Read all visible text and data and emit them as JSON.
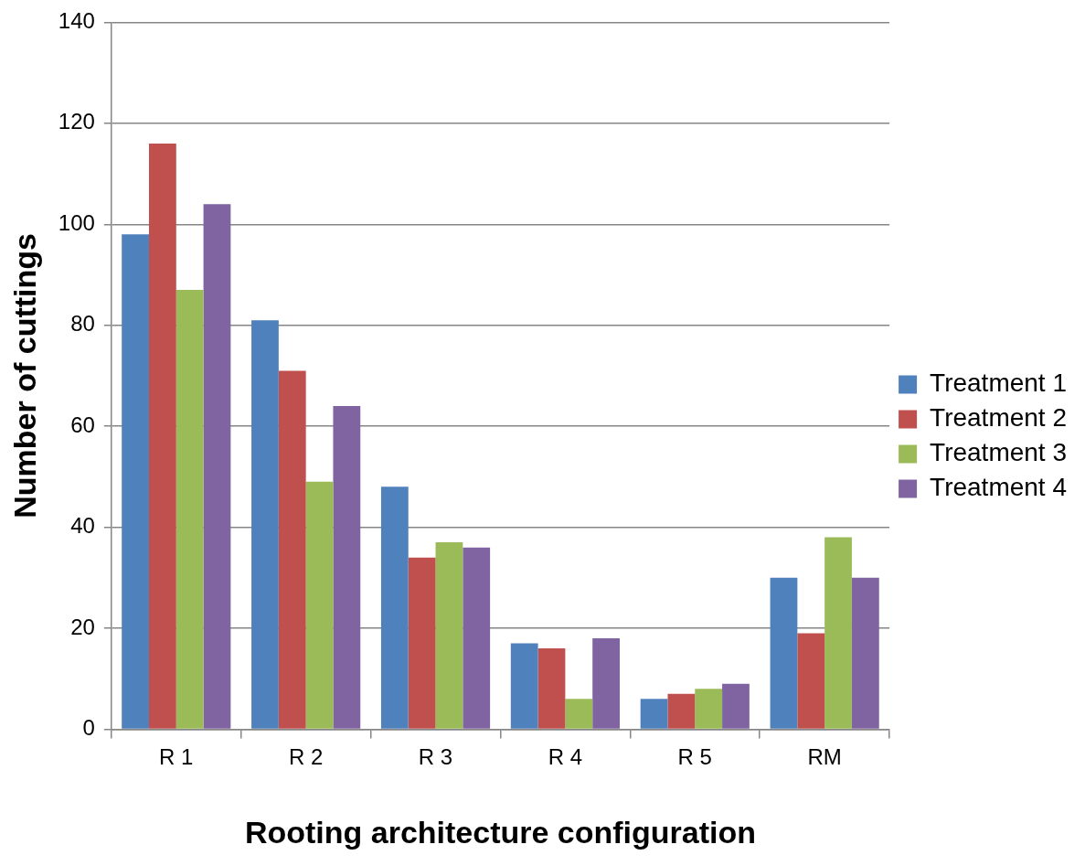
{
  "chart_data": {
    "type": "bar",
    "xlabel": "Rooting architecture configuration",
    "ylabel": "Number of cuttings",
    "categories": [
      "R 1",
      "R 2",
      "R 3",
      "R 4",
      "R 5",
      "RM"
    ],
    "series": [
      {
        "name": "Treatment 1",
        "color": "#4f81bd",
        "values": [
          98,
          81,
          48,
          17,
          6,
          30
        ]
      },
      {
        "name": "Treatment 2",
        "color": "#c0504d",
        "values": [
          116,
          71,
          34,
          16,
          7,
          19
        ]
      },
      {
        "name": "Treatment 3",
        "color": "#9bbb59",
        "values": [
          87,
          49,
          37,
          6,
          8,
          38
        ]
      },
      {
        "name": "Treatment 4",
        "color": "#8064a2",
        "values": [
          104,
          64,
          36,
          18,
          9,
          30
        ]
      }
    ],
    "ylim": [
      0,
      140
    ],
    "yticks": [
      0,
      20,
      40,
      60,
      80,
      100,
      120,
      140
    ],
    "grid": "y",
    "legend": "right"
  }
}
